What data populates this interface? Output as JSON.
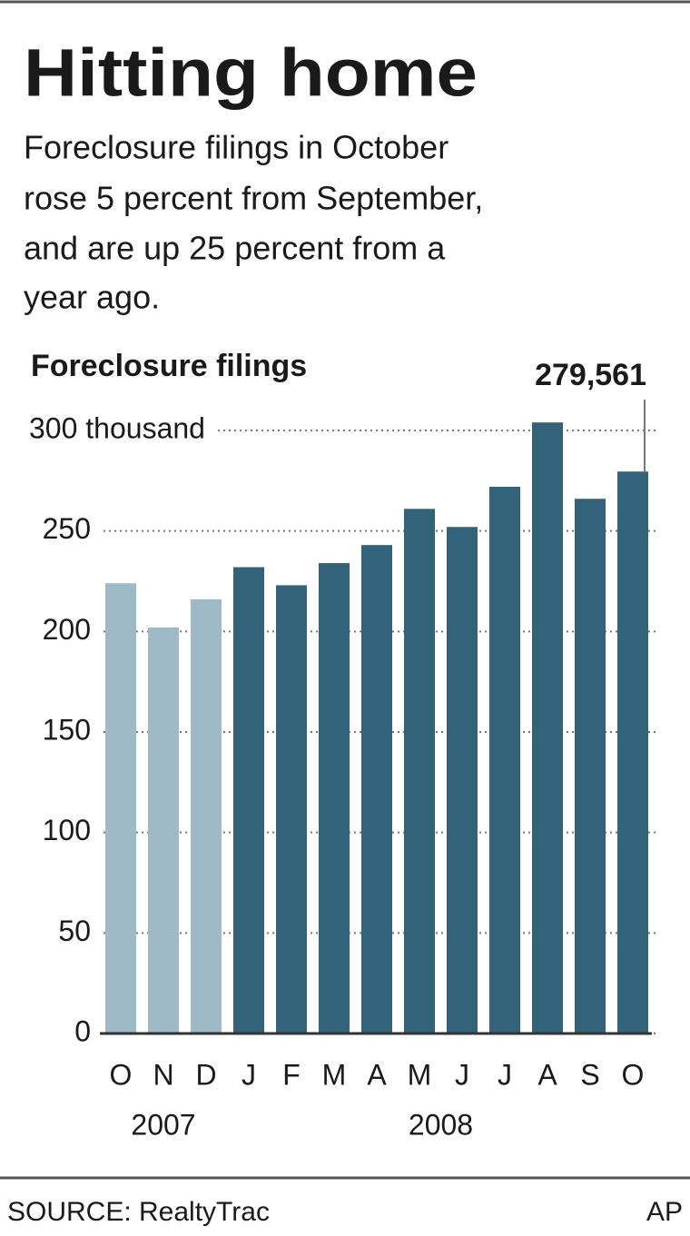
{
  "chart_data": {
    "type": "bar",
    "title": "Hitting home",
    "subtitle": [
      "Foreclosure filings in October",
      "rose 5 percent from September,",
      "and are up 25 percent from a",
      "year ago."
    ],
    "y_label": "Foreclosure filings",
    "categories": [
      "O",
      "N",
      "D",
      "J",
      "F",
      "M",
      "A",
      "M",
      "J",
      "J",
      "A",
      "S",
      "O"
    ],
    "series": [
      {
        "name": "2007",
        "color": "#9dbac6",
        "values": [
          224,
          202,
          216,
          null,
          null,
          null,
          null,
          null,
          null,
          null,
          null,
          null,
          null
        ]
      },
      {
        "name": "2008",
        "color": "#336378",
        "values": [
          null,
          null,
          null,
          232,
          223,
          234,
          243,
          261,
          252,
          272,
          304,
          266,
          279.561
        ],
        "value_labels": [
          null,
          null,
          null,
          null,
          null,
          null,
          null,
          null,
          null,
          null,
          null,
          null,
          "279,561"
        ]
      }
    ],
    "ylim": [
      0,
      300
    ],
    "yticks": [
      0,
      50,
      100,
      150,
      200,
      250,
      {
        "value": 300,
        "label": "300 thousand"
      }
    ],
    "grid": true,
    "source": "SOURCE: RealtyTrac",
    "credit": "AP"
  }
}
